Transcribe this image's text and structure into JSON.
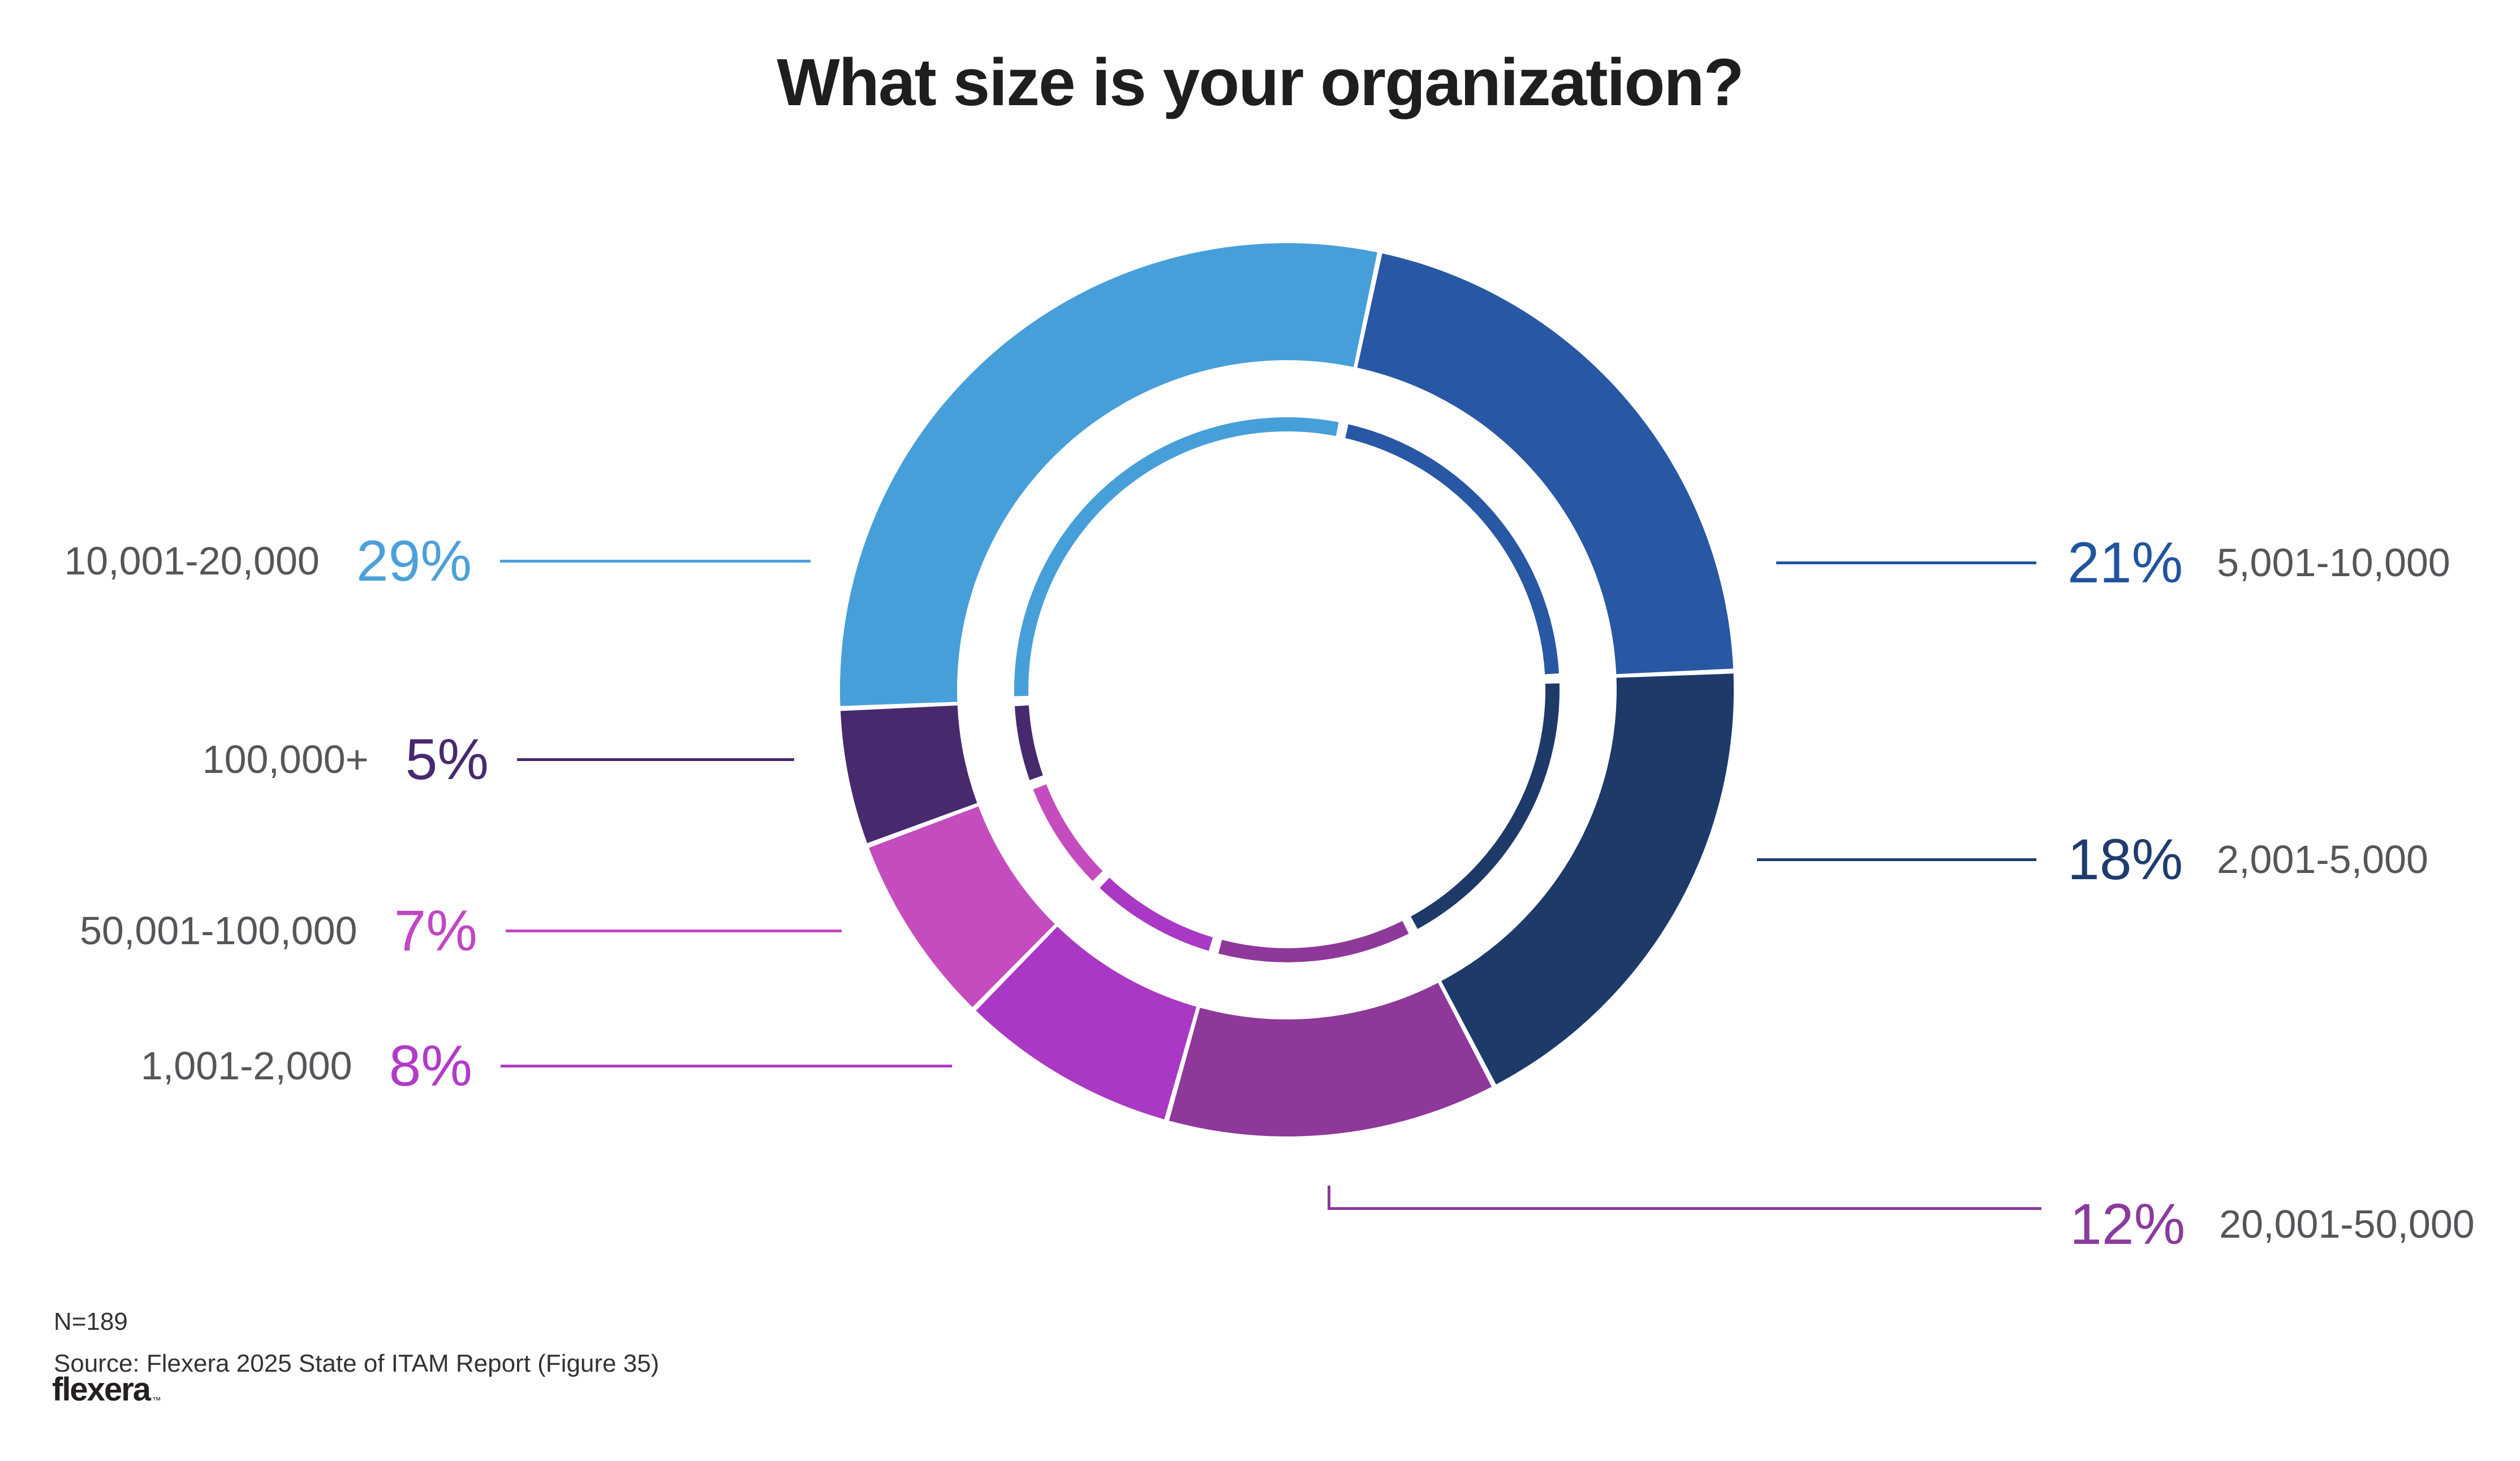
{
  "title": "What size is your organization?",
  "chart_data": {
    "type": "pie",
    "donut": true,
    "double_ring": true,
    "title": "What size is your organization?",
    "start_angle_deg": 12,
    "clockwise": true,
    "categories": [
      "5,001-10,000",
      "2,001-5,000",
      "20,001-50,000",
      "1,001-2,000",
      "50,001-100,000",
      "100,000+",
      "10,001-20,000"
    ],
    "values": [
      21,
      18,
      12,
      8,
      7,
      5,
      29
    ],
    "unit": "%",
    "colors": [
      "#2857A4",
      "#1D3A69",
      "#8E3899",
      "#A938C4",
      "#C54CBE",
      "#472A6E",
      "#479FD9"
    ],
    "legend_position": "callouts"
  },
  "callouts": {
    "left": [
      {
        "range": "10,001-20,000",
        "pct": "29%",
        "color": "#4DA0DA"
      },
      {
        "range": "100,000+",
        "pct": "5%",
        "color": "#482970"
      },
      {
        "range": "50,001-100,000",
        "pct": "7%",
        "color": "#C247C2"
      },
      {
        "range": "1,001-2,000",
        "pct": "8%",
        "color": "#B23AC8"
      }
    ],
    "right": [
      {
        "pct": "21%",
        "range": "5,001-10,000",
        "color": "#21549F"
      },
      {
        "pct": "18%",
        "range": "2,001-5,000",
        "color": "#1E3C6E"
      },
      {
        "pct": "12%",
        "range": "20,001-50,000",
        "color": "#8B3A9D"
      }
    ]
  },
  "footer": {
    "n_label": "N=189",
    "source": "Source: Flexera 2025 State of ITAM Report (Figure 35)",
    "logo_text": "flexera",
    "logo_tm": "™"
  },
  "text_color_gray": "#55565A",
  "title_color": "#1E1E1E"
}
